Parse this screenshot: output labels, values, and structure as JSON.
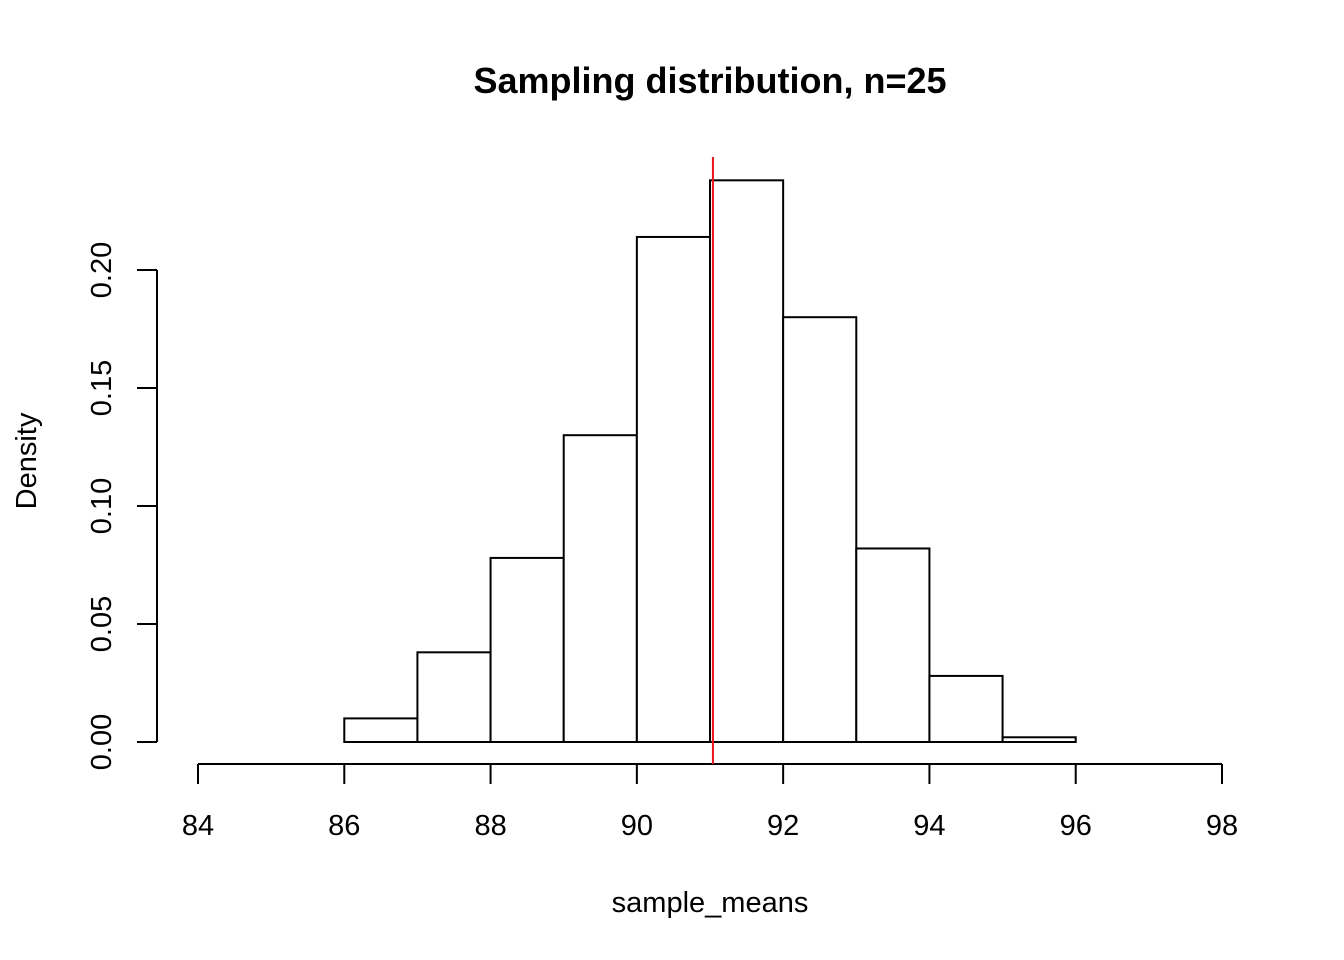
{
  "chart_data": {
    "type": "bar",
    "title": "Sampling distribution, n=25",
    "xlabel": "sample_means",
    "ylabel": "Density",
    "xlim": [
      84,
      98
    ],
    "ylim": [
      0,
      0.25
    ],
    "x_ticks": [
      "84",
      "86",
      "88",
      "90",
      "92",
      "94",
      "96",
      "98"
    ],
    "y_ticks": [
      "0.00",
      "0.05",
      "0.10",
      "0.15",
      "0.20"
    ],
    "bins": [
      {
        "x0": 86,
        "x1": 87,
        "density": 0.01
      },
      {
        "x0": 87,
        "x1": 88,
        "density": 0.038
      },
      {
        "x0": 88,
        "x1": 89,
        "density": 0.078
      },
      {
        "x0": 89,
        "x1": 90,
        "density": 0.13
      },
      {
        "x0": 90,
        "x1": 91,
        "density": 0.214
      },
      {
        "x0": 91,
        "x1": 92,
        "density": 0.238
      },
      {
        "x0": 92,
        "x1": 93,
        "density": 0.18
      },
      {
        "x0": 93,
        "x1": 94,
        "density": 0.082
      },
      {
        "x0": 94,
        "x1": 95,
        "density": 0.028
      },
      {
        "x0": 95,
        "x1": 96,
        "density": 0.002
      }
    ],
    "vline": {
      "x": 91.04,
      "color": "#e8151b"
    },
    "grid": false
  }
}
